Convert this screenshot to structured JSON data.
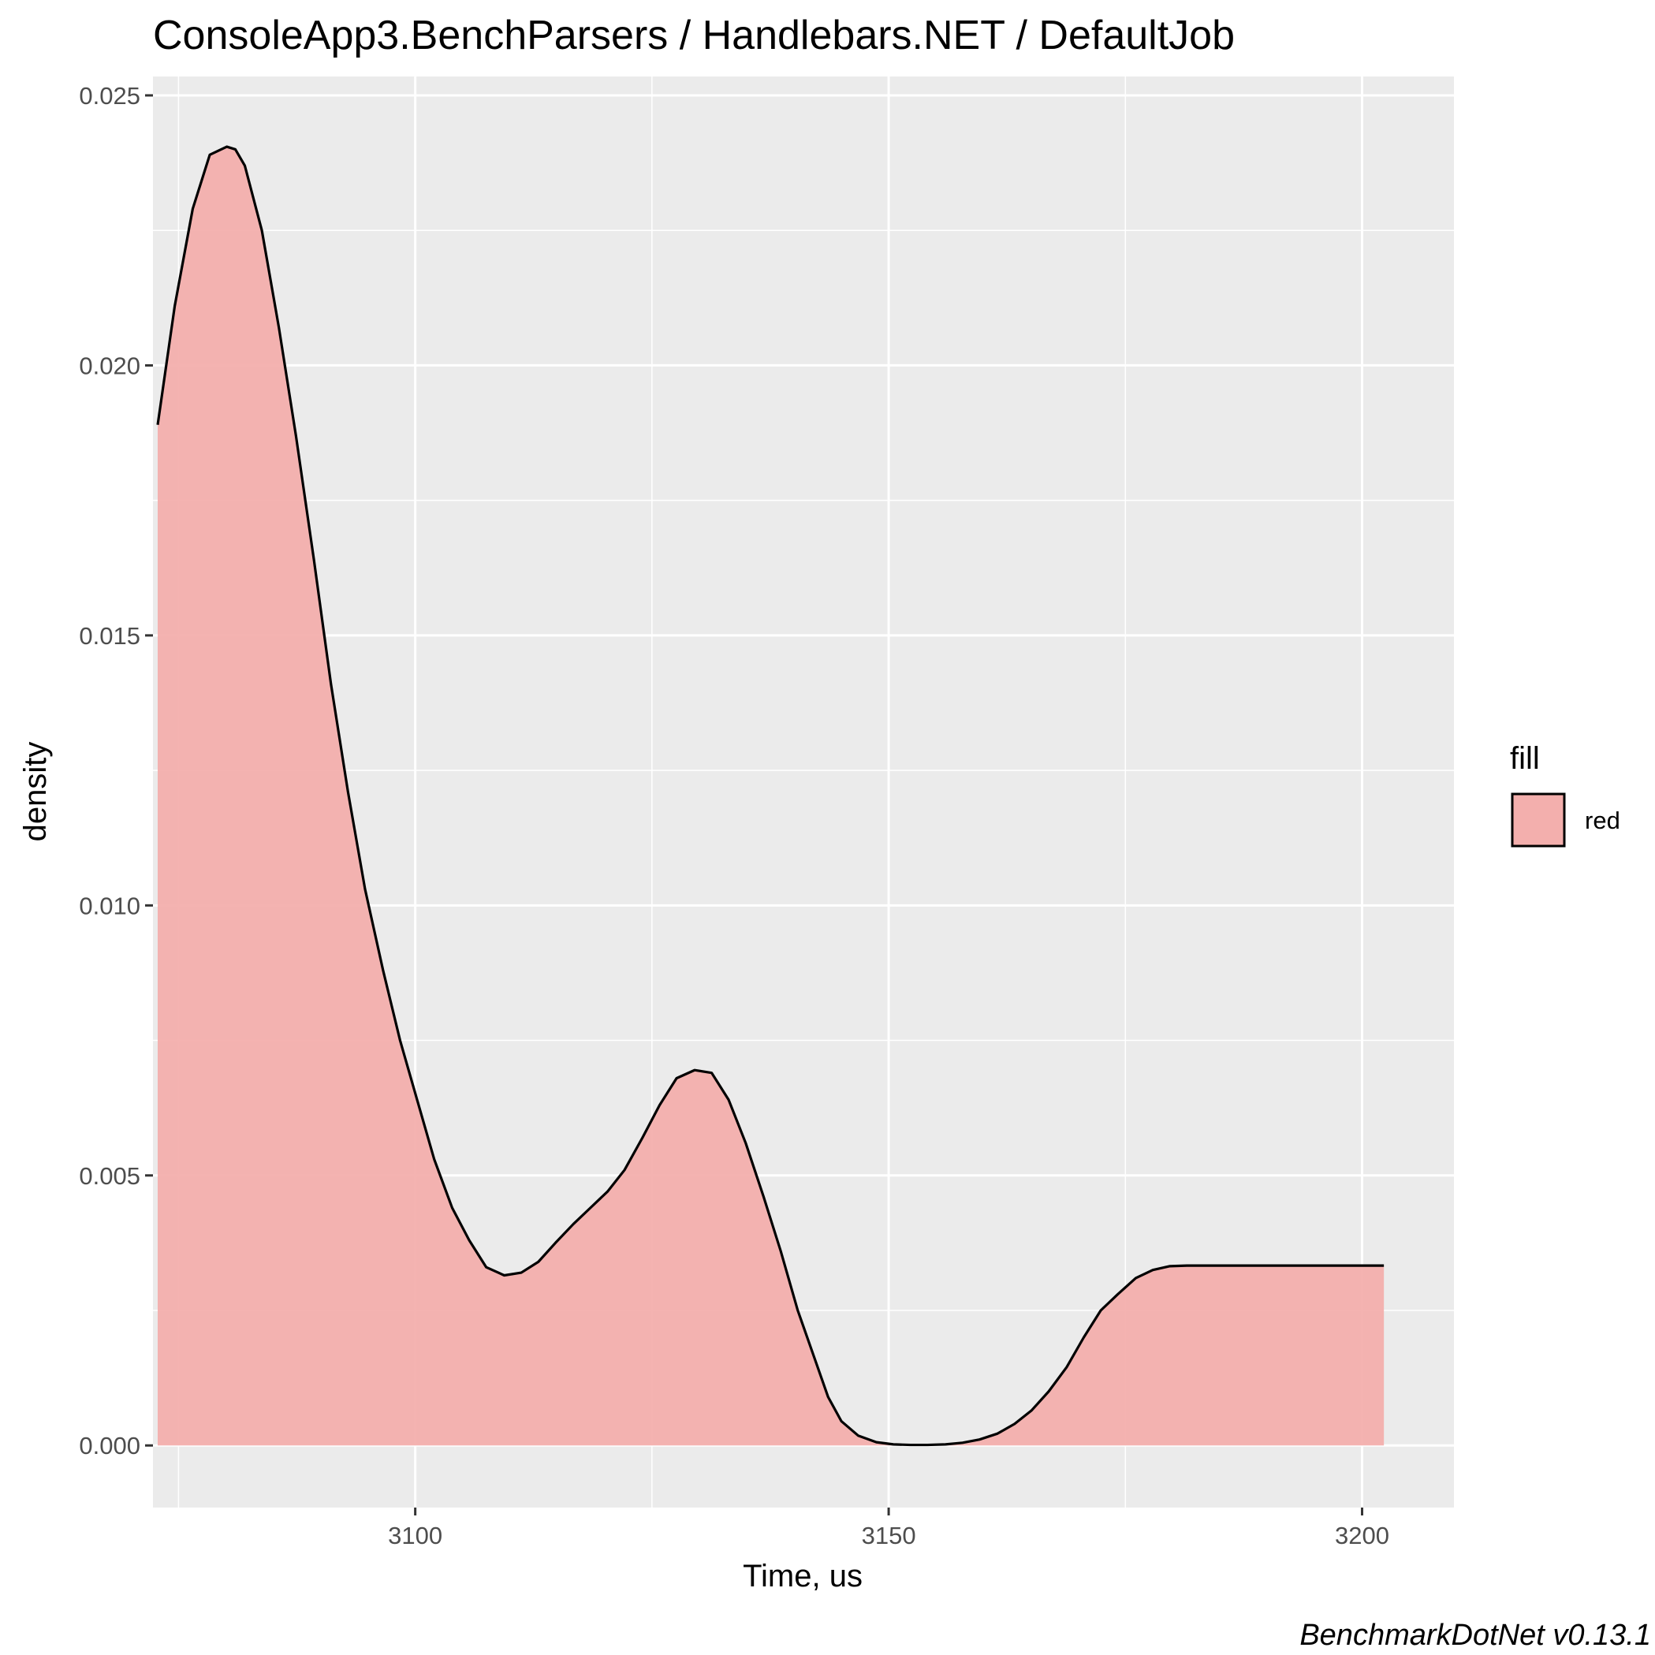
{
  "chart_data": {
    "type": "area",
    "title": "ConsoleApp3.BenchParsers / Handlebars.NET / DefaultJob",
    "xlabel": "Time, us",
    "ylabel": "density",
    "caption": "BenchmarkDotNet v0.13.1",
    "xlim": [
      3072.3,
      3209.7
    ],
    "ylim": [
      -0.00115,
      0.02535
    ],
    "x_ticks": [
      3100,
      3150,
      3200
    ],
    "x_tick_labels": [
      "3100",
      "3150",
      "3200"
    ],
    "y_ticks": [
      0.0,
      0.005,
      0.01,
      0.015,
      0.02,
      0.025
    ],
    "y_tick_labels": [
      "0.000",
      "0.005",
      "0.010",
      "0.015",
      "0.020",
      "0.025"
    ],
    "grid": true,
    "legend": {
      "title": "fill",
      "entries": [
        "red"
      ],
      "position": "right"
    },
    "series": [
      {
        "fill_color": "#f3afad",
        "line_color": "#000000",
        "x": [
          3072.8,
          3074.6,
          3076.5,
          3078.3,
          3080.1,
          3081.0,
          3082.0,
          3083.8,
          3085.6,
          3087.4,
          3089.3,
          3091.1,
          3092.9,
          3094.7,
          3096.6,
          3098.4,
          3100.2,
          3102.0,
          3103.9,
          3105.7,
          3107.5,
          3109.4,
          3111.2,
          3113.0,
          3114.8,
          3116.7,
          3118.5,
          3120.3,
          3122.1,
          3124.0,
          3125.8,
          3127.6,
          3129.5,
          3131.3,
          3133.1,
          3134.9,
          3136.8,
          3138.6,
          3140.4,
          3142.2,
          3143.6,
          3145.0,
          3146.8,
          3148.7,
          3150.5,
          3152.3,
          3154.1,
          3156.0,
          3157.8,
          3159.6,
          3161.5,
          3163.3,
          3165.1,
          3166.9,
          3168.8,
          3170.6,
          3172.4,
          3174.2,
          3176.1,
          3177.9,
          3179.7,
          3181.5,
          3183.4,
          3185.2,
          3187.0,
          3188.9,
          3190.7,
          3192.5,
          3194.3,
          3196.2,
          3198.0,
          3199.8,
          3201.1,
          3202.3
        ],
        "y": [
          0.0189,
          0.0211,
          0.0229,
          0.0239,
          0.02405,
          0.024,
          0.0237,
          0.0225,
          0.0207,
          0.0187,
          0.0164,
          0.0141,
          0.0121,
          0.0103,
          0.0088,
          0.0075,
          0.0064,
          0.0053,
          0.0044,
          0.0038,
          0.0033,
          0.00315,
          0.0032,
          0.0034,
          0.00375,
          0.0041,
          0.0044,
          0.0047,
          0.0051,
          0.0057,
          0.0063,
          0.0068,
          0.00695,
          0.0069,
          0.0064,
          0.0056,
          0.0046,
          0.0036,
          0.0025,
          0.0016,
          0.0009,
          0.00045,
          0.00018,
          6e-05,
          2e-05,
          1e-05,
          1e-05,
          2e-05,
          5e-05,
          0.00011,
          0.00022,
          0.0004,
          0.00065,
          0.001,
          0.00145,
          0.002,
          0.0025,
          0.0028,
          0.0031,
          0.00325,
          0.00332,
          0.00333,
          0.00333,
          0.00333,
          0.00333,
          0.00333,
          0.00333,
          0.00333,
          0.00333,
          0.00333,
          0.00333,
          0.00333,
          0.00333,
          0.00333
        ]
      }
    ]
  }
}
